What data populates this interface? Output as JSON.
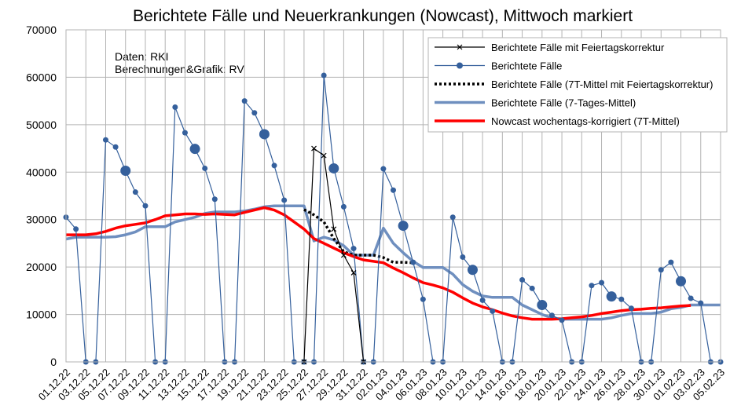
{
  "chart_data": {
    "type": "line",
    "title": "Berichtete Fälle und Neuerkrankungen (Nowcast), Mittwoch markiert",
    "annotations": [
      "Daten: RKI",
      "Berechnungen&Grafik: RV"
    ],
    "categories": [
      "01.12.22",
      null,
      "03.12.22",
      null,
      "05.12.22",
      null,
      "07.12.22",
      null,
      "09.12.22",
      null,
      "11.12.22",
      null,
      "13.12.22",
      null,
      "15.12.22",
      null,
      "17.12.22",
      null,
      "19.12.22",
      null,
      "21.12.22",
      null,
      "23.12.22",
      null,
      "25.12.22",
      null,
      "27.12.22",
      null,
      "29.12.22",
      null,
      "31.12.22",
      null,
      "02.01.23",
      null,
      "04.01.23",
      null,
      "06.01.23",
      null,
      "08.01.23",
      null,
      "10.01.23",
      null,
      "12.01.23",
      null,
      "14.01.23",
      null,
      "16.01.23",
      null,
      "18.01.23",
      null,
      "20.01.23",
      null,
      "22.01.23",
      null,
      "24.01.23",
      null,
      "26.01.23",
      null,
      "28.01.23",
      null,
      "30.01.23",
      null,
      "01.02.23",
      null,
      "03.02.23",
      null,
      "05.02.23"
    ],
    "ylim": [
      0,
      70000
    ],
    "yticks": [
      0,
      10000,
      20000,
      30000,
      40000,
      50000,
      60000,
      70000
    ],
    "grid": true,
    "legend": "upper right",
    "series": [
      {
        "name": "Berichtete Fälle mit Feiertagskorrektur",
        "color": "#000000",
        "marker": "x",
        "width": 1.2,
        "values": [
          null,
          null,
          null,
          null,
          null,
          null,
          null,
          null,
          null,
          null,
          null,
          null,
          null,
          null,
          null,
          null,
          null,
          null,
          null,
          null,
          null,
          null,
          null,
          null,
          0,
          45000,
          43500,
          28000,
          22500,
          18800,
          0,
          null,
          null,
          null,
          null,
          null,
          null,
          null,
          null,
          null,
          null,
          null,
          null,
          null,
          null,
          null,
          null,
          null,
          null,
          null,
          null,
          null,
          null,
          null,
          null,
          null,
          null,
          null,
          null,
          null,
          null,
          null,
          null,
          null,
          null,
          null,
          null
        ]
      },
      {
        "name": "Berichtete Fälle",
        "color": "#35609c",
        "marker": "circle",
        "width": 1.2,
        "values": [
          30500,
          28000,
          0,
          0,
          46800,
          45300,
          40300,
          35800,
          32900,
          0,
          0,
          53700,
          48300,
          44900,
          40800,
          34300,
          0,
          0,
          55000,
          52500,
          48000,
          41400,
          34100,
          0,
          0,
          0,
          60400,
          40800,
          32700,
          23900,
          0,
          0,
          40700,
          36200,
          28700,
          21000,
          13200,
          0,
          0,
          30500,
          22100,
          19400,
          13000,
          10700,
          0,
          0,
          17300,
          15500,
          12000,
          9800,
          8800,
          0,
          0,
          16100,
          16700,
          13800,
          13200,
          11300,
          0,
          0,
          19400,
          21000,
          17000,
          13400,
          12400,
          0,
          0
        ]
      },
      {
        "name": "Berichtete Fälle (7T-Mittel mit Feiertagskorrektur)",
        "color": "#000000",
        "dash": true,
        "width": 3.5,
        "values": [
          null,
          null,
          null,
          null,
          null,
          null,
          null,
          null,
          null,
          null,
          null,
          null,
          null,
          null,
          null,
          null,
          null,
          null,
          null,
          null,
          null,
          null,
          null,
          null,
          32100,
          31000,
          29500,
          26000,
          23200,
          22500,
          22500,
          22500,
          22000,
          21000,
          21000,
          20900,
          null,
          null,
          null,
          null,
          null,
          null,
          null,
          null,
          null,
          null,
          null,
          null,
          null,
          null,
          null,
          null,
          null,
          null,
          null,
          null,
          null,
          null,
          null,
          null,
          null,
          null,
          null,
          null,
          null,
          null,
          null
        ]
      },
      {
        "name": "Berichtete Fälle (7-Tages-Mittel)",
        "color": "#6f8fbf",
        "width": 3.5,
        "values": [
          25900,
          26300,
          26300,
          26300,
          26300,
          26400,
          26800,
          27400,
          28500,
          28500,
          28500,
          29500,
          30000,
          30500,
          31300,
          31600,
          31600,
          31600,
          31800,
          32200,
          32700,
          32900,
          32900,
          32900,
          32900,
          25500,
          26300,
          25700,
          24500,
          22500,
          22500,
          22500,
          28200,
          25000,
          23000,
          21200,
          19900,
          19900,
          19900,
          18500,
          16300,
          14900,
          13900,
          13600,
          13600,
          13600,
          12000,
          11000,
          10000,
          9300,
          9000,
          9000,
          9000,
          9000,
          9000,
          9300,
          9800,
          10200,
          10200,
          10200,
          10500,
          11200,
          11500,
          12000,
          12000,
          12000,
          12000
        ]
      },
      {
        "name": "Nowcast wochentags-korrigiert (7T-Mittel)",
        "color": "#ff0000",
        "width": 3.5,
        "values": [
          26800,
          26800,
          26800,
          27000,
          27500,
          28200,
          28700,
          29000,
          29300,
          30000,
          30800,
          31000,
          31200,
          31200,
          31100,
          31200,
          31100,
          31000,
          31500,
          32000,
          32500,
          32000,
          31000,
          29500,
          28000,
          26000,
          25000,
          24000,
          23000,
          22200,
          21500,
          21200,
          20900,
          19800,
          18800,
          17700,
          16700,
          16200,
          15600,
          14700,
          13500,
          12400,
          11600,
          11000,
          10300,
          9700,
          9300,
          9000,
          9000,
          9000,
          9100,
          9300,
          9500,
          9800,
          10200,
          10500,
          10800,
          11000,
          11100,
          11300,
          11400,
          11600,
          11800,
          11900,
          null,
          null,
          null
        ]
      }
    ]
  }
}
